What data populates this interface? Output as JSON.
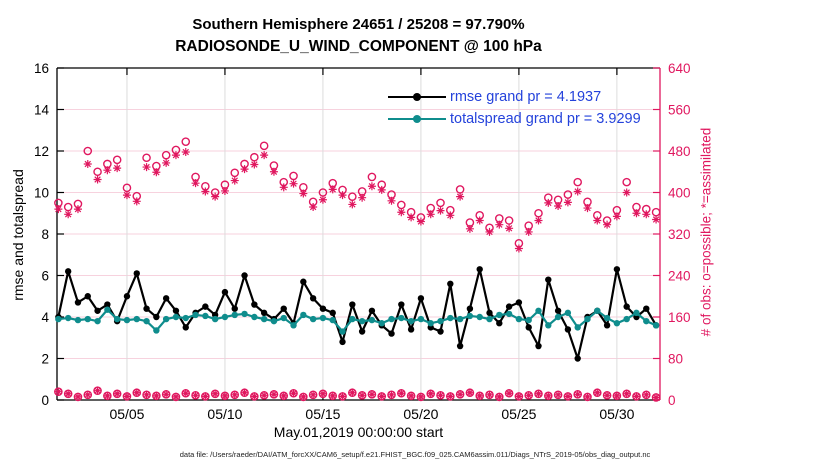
{
  "header": {
    "title_line1": "Southern Hemisphere 24651 / 25208 = 97.790%",
    "title_line2": "RADIOSONDE_U_WIND_COMPONENT @ 100 hPa"
  },
  "legend": {
    "text_color": "#2442db",
    "entries": [
      {
        "label": "rmse grand pr = 4.1937",
        "color": "#000000"
      },
      {
        "label": "totalspread grand pr = 3.9299",
        "color": "#0f8d8d"
      }
    ]
  },
  "footer": {
    "data_file_note": "data file: /Users/raeder/DAI/ATM_forcXX/CAM6_setup/f.e21.FHIST_BGC.f09_025.CAM6assim.011/Diags_NTrS_2019-05/obs_diag_output.nc"
  },
  "chart_data": {
    "type": "line",
    "title": [
      "Southern Hemisphere 24651 / 25208 = 97.790%",
      "RADIOSONDE_U_WIND_COMPONENT @ 100 hPa"
    ],
    "xlabel": "May.01,2019 00:00:00 start",
    "ylabel_left": "rmse and totalspread",
    "ylabel_right": "# of obs: o=possible; *=assimilated",
    "grid": {
      "horizontal_color": "#f7d2de",
      "vertical_color": "#dcdcdc",
      "on": true
    },
    "axis_colors": {
      "left": "#000000",
      "right": "#e0175f"
    },
    "legend_position": "top-right-inside",
    "ylim_left": [
      0,
      16
    ],
    "yticks_left": [
      0,
      2,
      4,
      6,
      8,
      10,
      12,
      14,
      16
    ],
    "ylim_right": [
      0,
      640
    ],
    "yticks_right": [
      0,
      80,
      160,
      240,
      320,
      400,
      480,
      560,
      640
    ],
    "x_axis": {
      "start_label": "May.01,2019 00:00:00 start",
      "domain_days": [
        0.43,
        31.2
      ],
      "ticks": [
        {
          "day": 4,
          "label": "05/05"
        },
        {
          "day": 9,
          "label": "05/10"
        },
        {
          "day": 14,
          "label": "05/15"
        },
        {
          "day": 19,
          "label": "05/20"
        },
        {
          "day": 24,
          "label": "05/25"
        },
        {
          "day": 29,
          "label": "05/30"
        }
      ],
      "bin_start_day": 0.5,
      "bin_step_days": 0.5,
      "bin_count": 62
    },
    "series": [
      {
        "name": "rmse",
        "legend": "rmse grand pr = 4.1937",
        "grand_value": 4.1937,
        "axis": "left",
        "color": "#000000",
        "marker": "filled-circle",
        "line": true,
        "values": [
          4.0,
          6.2,
          4.7,
          5.0,
          4.3,
          4.6,
          3.8,
          5.0,
          6.1,
          4.4,
          4.0,
          4.9,
          4.3,
          3.5,
          4.2,
          4.5,
          4.1,
          5.2,
          4.4,
          6.0,
          4.6,
          4.2,
          3.9,
          4.4,
          3.7,
          5.7,
          4.9,
          4.4,
          4.2,
          2.8,
          4.6,
          3.3,
          4.3,
          3.6,
          3.2,
          4.6,
          3.4,
          4.9,
          3.5,
          3.3,
          5.6,
          2.6,
          4.4,
          6.3,
          4.2,
          3.7,
          4.5,
          4.7,
          3.5,
          2.6,
          5.8,
          4.3,
          3.4,
          2.0,
          4.0,
          4.3,
          3.6,
          6.3,
          4.5,
          4.0,
          4.4,
          3.6
        ]
      },
      {
        "name": "totalspread",
        "legend": "totalspread grand pr = 3.9299",
        "grand_value": 3.9299,
        "axis": "left",
        "color": "#0f8d8d",
        "marker": "filled-circle",
        "line": true,
        "values": [
          3.9,
          3.95,
          3.85,
          3.9,
          3.8,
          4.35,
          3.9,
          3.85,
          3.9,
          3.8,
          3.35,
          3.9,
          4.0,
          3.95,
          4.1,
          4.05,
          3.9,
          4.0,
          4.1,
          4.15,
          4.0,
          3.9,
          3.8,
          3.95,
          3.6,
          4.1,
          3.9,
          3.95,
          3.85,
          3.3,
          3.9,
          3.8,
          3.85,
          3.7,
          3.9,
          3.95,
          3.8,
          3.9,
          3.7,
          3.8,
          3.95,
          3.9,
          4.05,
          4.0,
          3.9,
          4.1,
          4.15,
          3.9,
          3.85,
          4.3,
          3.6,
          4.0,
          4.2,
          3.5,
          3.9,
          4.3,
          3.95,
          3.7,
          3.9,
          4.2,
          3.8,
          3.6
        ]
      },
      {
        "name": "n_possible",
        "legend": null,
        "axis": "right",
        "color": "#e0175f",
        "marker": "open-circle",
        "line": false,
        "values": [
          380,
          372,
          378,
          480,
          440,
          455,
          463,
          409,
          393,
          467,
          451,
          472,
          482,
          498,
          430,
          412,
          400,
          415,
          438,
          455,
          468,
          490,
          452,
          420,
          432,
          410,
          382,
          400,
          418,
          405,
          392,
          402,
          430,
          415,
          396,
          376,
          362,
          352,
          370,
          380,
          366,
          406,
          342,
          356,
          332,
          350,
          346,
          302,
          336,
          360,
          390,
          386,
          396,
          420,
          382,
          356,
          346,
          366,
          420,
          372,
          368,
          362
        ]
      },
      {
        "name": "n_assimilated",
        "legend": null,
        "axis": "right",
        "color": "#e0175f",
        "marker": "asterisk",
        "line": false,
        "values": [
          368,
          358,
          368,
          455,
          425,
          443,
          447,
          395,
          383,
          449,
          439,
          457,
          472,
          478,
          418,
          402,
          392,
          403,
          423,
          445,
          454,
          472,
          440,
          410,
          417,
          398,
          372,
          386,
          406,
          395,
          377,
          390,
          412,
          405,
          384,
          362,
          352,
          344,
          358,
          365,
          356,
          392,
          330,
          346,
          324,
          338,
          331,
          292,
          324,
          346,
          380,
          374,
          381,
          402,
          370,
          346,
          338,
          354,
          400,
          360,
          358,
          348
        ]
      },
      {
        "name": "n_obs_low_band",
        "legend": null,
        "axis": "right",
        "color": "#e0175f",
        "marker": "open-circle+asterisk",
        "line": false,
        "values": [
          16,
          12,
          6,
          10,
          18,
          8,
          12,
          7,
          14,
          10,
          8,
          11,
          6,
          13,
          9,
          7,
          12,
          8,
          10,
          14,
          7,
          9,
          11,
          8,
          13,
          6,
          10,
          12,
          8,
          7,
          14,
          9,
          11,
          7,
          10,
          13,
          8,
          6,
          12,
          9,
          7,
          11,
          14,
          8,
          10,
          6,
          13,
          7,
          9,
          12,
          8,
          10,
          7,
          11,
          6,
          14,
          9,
          8,
          12,
          7,
          10,
          5
        ]
      }
    ]
  }
}
